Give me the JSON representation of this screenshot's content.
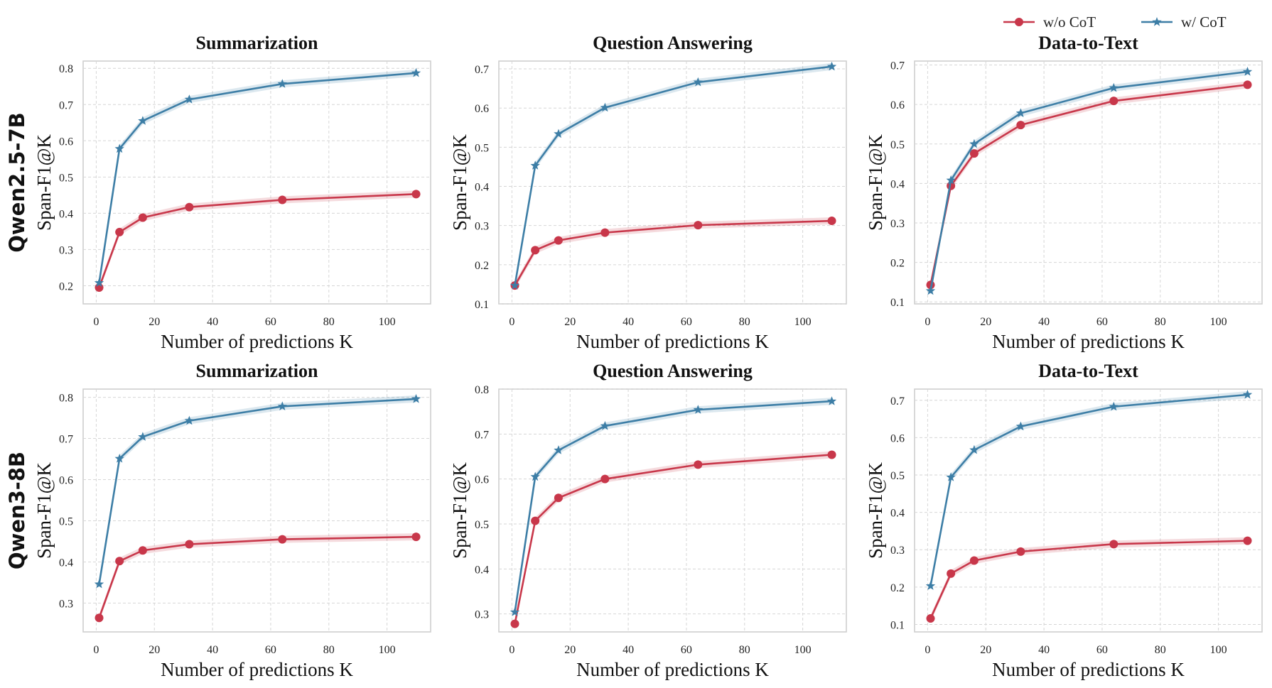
{
  "legend": {
    "placement": "top-right",
    "entries": [
      {
        "label": "w/o CoT",
        "color": "#c8374a",
        "marker": "circle"
      },
      {
        "label": "w/ CoT",
        "color": "#3d7ea6",
        "marker": "star"
      }
    ]
  },
  "row_labels": [
    "Qwen2.5-7B",
    "Qwen3-8B"
  ],
  "chart_data": [
    {
      "type": "line",
      "row": 0,
      "title": "Summarization",
      "xlabel": "Number of predictions K",
      "ylabel": "Span-F1@K",
      "grid": true,
      "x": [
        1,
        8,
        16,
        32,
        64,
        110
      ],
      "xlim": [
        -4.5,
        115
      ],
      "xticks": [
        0,
        20,
        40,
        60,
        80,
        100
      ],
      "ylim": [
        0.15,
        0.82
      ],
      "yticks": [
        0.2,
        0.3,
        0.4,
        0.5,
        0.6,
        0.7,
        0.8
      ],
      "series": [
        {
          "name": "w/o CoT",
          "values": [
            0.195,
            0.348,
            0.388,
            0.417,
            0.437,
            0.453
          ]
        },
        {
          "name": "w/ CoT",
          "values": [
            0.208,
            0.578,
            0.655,
            0.714,
            0.757,
            0.787
          ]
        }
      ]
    },
    {
      "type": "line",
      "row": 0,
      "title": "Question Answering",
      "xlabel": "Number of predictions K",
      "ylabel": "Span-F1@K",
      "grid": true,
      "x": [
        1,
        8,
        16,
        32,
        64,
        110
      ],
      "xlim": [
        -4.5,
        115
      ],
      "xticks": [
        0,
        20,
        40,
        60,
        80,
        100
      ],
      "ylim": [
        0.1,
        0.72
      ],
      "yticks": [
        0.1,
        0.2,
        0.3,
        0.4,
        0.5,
        0.6,
        0.7
      ],
      "series": [
        {
          "name": "w/o CoT",
          "values": [
            0.147,
            0.237,
            0.262,
            0.282,
            0.301,
            0.312
          ]
        },
        {
          "name": "w/ CoT",
          "values": [
            0.147,
            0.453,
            0.534,
            0.601,
            0.666,
            0.706
          ]
        }
      ]
    },
    {
      "type": "line",
      "row": 0,
      "title": "Data-to-Text",
      "xlabel": "Number of predictions K",
      "ylabel": "Span-F1@K",
      "grid": true,
      "x": [
        1,
        8,
        16,
        32,
        64,
        110
      ],
      "xlim": [
        -4.5,
        115
      ],
      "xticks": [
        0,
        20,
        40,
        60,
        80,
        100
      ],
      "ylim": [
        0.095,
        0.71
      ],
      "yticks": [
        0.1,
        0.2,
        0.3,
        0.4,
        0.5,
        0.6,
        0.7
      ],
      "series": [
        {
          "name": "w/o CoT",
          "values": [
            0.143,
            0.394,
            0.476,
            0.548,
            0.609,
            0.65
          ]
        },
        {
          "name": "w/ CoT",
          "values": [
            0.128,
            0.408,
            0.5,
            0.578,
            0.642,
            0.683
          ]
        }
      ]
    },
    {
      "type": "line",
      "row": 1,
      "title": "Summarization",
      "xlabel": "Number of predictions K",
      "ylabel": "Span-F1@K",
      "grid": true,
      "x": [
        1,
        8,
        16,
        32,
        64,
        110
      ],
      "xlim": [
        -4.5,
        115
      ],
      "xticks": [
        0,
        20,
        40,
        60,
        80,
        100
      ],
      "ylim": [
        0.23,
        0.82
      ],
      "yticks": [
        0.3,
        0.4,
        0.5,
        0.6,
        0.7,
        0.8
      ],
      "series": [
        {
          "name": "w/o CoT",
          "values": [
            0.264,
            0.402,
            0.428,
            0.443,
            0.455,
            0.461
          ]
        },
        {
          "name": "w/ CoT",
          "values": [
            0.346,
            0.651,
            0.704,
            0.743,
            0.778,
            0.796
          ]
        }
      ]
    },
    {
      "type": "line",
      "row": 1,
      "title": "Question Answering",
      "xlabel": "Number of predictions K",
      "ylabel": "Span-F1@K",
      "grid": true,
      "x": [
        1,
        8,
        16,
        32,
        64,
        110
      ],
      "xlim": [
        -4.5,
        115
      ],
      "xticks": [
        0,
        20,
        40,
        60,
        80,
        100
      ],
      "ylim": [
        0.26,
        0.8
      ],
      "yticks": [
        0.3,
        0.4,
        0.5,
        0.6,
        0.7,
        0.8
      ],
      "series": [
        {
          "name": "w/o CoT",
          "values": [
            0.278,
            0.507,
            0.558,
            0.6,
            0.632,
            0.654
          ]
        },
        {
          "name": "w/ CoT",
          "values": [
            0.304,
            0.605,
            0.664,
            0.718,
            0.754,
            0.773
          ]
        }
      ]
    },
    {
      "type": "line",
      "row": 1,
      "title": "Data-to-Text",
      "xlabel": "Number of predictions K",
      "ylabel": "Span-F1@K",
      "grid": true,
      "x": [
        1,
        8,
        16,
        32,
        64,
        110
      ],
      "xlim": [
        -4.5,
        115
      ],
      "xticks": [
        0,
        20,
        40,
        60,
        80,
        100
      ],
      "ylim": [
        0.08,
        0.73
      ],
      "yticks": [
        0.1,
        0.2,
        0.3,
        0.4,
        0.5,
        0.6,
        0.7
      ],
      "series": [
        {
          "name": "w/o CoT",
          "values": [
            0.116,
            0.236,
            0.271,
            0.295,
            0.315,
            0.324
          ]
        },
        {
          "name": "w/ CoT",
          "values": [
            0.203,
            0.494,
            0.567,
            0.63,
            0.683,
            0.715
          ]
        }
      ]
    }
  ]
}
